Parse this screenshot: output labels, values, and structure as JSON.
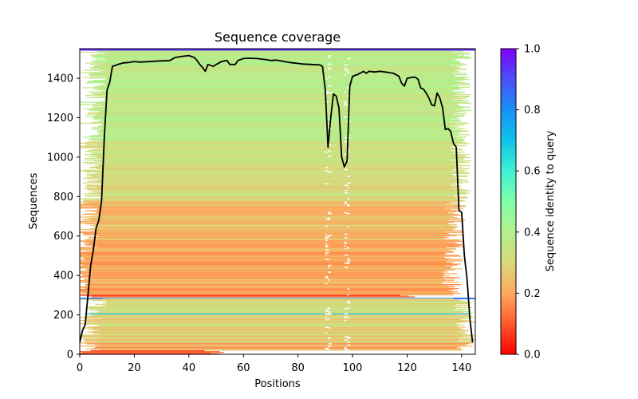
{
  "chart_data": {
    "type": "heatmap",
    "title": "Sequence coverage",
    "xlabel": "Positions",
    "ylabel": "Sequences",
    "xlim": [
      0,
      145
    ],
    "ylim": [
      0,
      1550
    ],
    "xticks": [
      0,
      20,
      40,
      60,
      80,
      100,
      120,
      140
    ],
    "yticks": [
      0,
      200,
      400,
      600,
      800,
      1000,
      1200,
      1400
    ],
    "grid": false,
    "colorbar": {
      "label": "Sequence identity to query",
      "range": [
        0,
        1
      ],
      "ticks": [
        "0.0",
        "0.2",
        "0.4",
        "0.6",
        "0.8",
        "1.0"
      ],
      "colormap": "rainbow_r",
      "stops": [
        {
          "v": 0.0,
          "color": "#ff0000"
        },
        {
          "v": 0.1,
          "color": "#ff5a2d"
        },
        {
          "v": 0.2,
          "color": "#ffa95e"
        },
        {
          "v": 0.3,
          "color": "#d8d87c"
        },
        {
          "v": 0.4,
          "color": "#b4f08c"
        },
        {
          "v": 0.5,
          "color": "#80ffa8"
        },
        {
          "v": 0.6,
          "color": "#3ef0d4"
        },
        {
          "v": 0.7,
          "color": "#0fc4ea"
        },
        {
          "v": 0.8,
          "color": "#1890f5"
        },
        {
          "v": 0.9,
          "color": "#4a50fa"
        },
        {
          "v": 1.0,
          "color": "#7f00ff"
        }
      ]
    },
    "coverage_line": {
      "name": "coverage",
      "color": "#000000",
      "x": [
        0,
        1,
        2,
        3,
        4,
        5,
        6,
        7,
        8,
        9,
        10,
        11,
        12,
        13,
        14,
        16,
        18,
        20,
        22,
        25,
        28,
        30,
        33,
        35,
        37,
        40,
        42,
        43,
        44,
        45,
        46,
        47,
        49,
        50,
        52,
        54,
        55,
        57,
        58,
        60,
        62,
        65,
        68,
        70,
        72,
        75,
        77,
        80,
        82,
        85,
        88,
        89,
        90,
        91,
        92,
        93,
        94,
        95,
        96,
        97,
        98,
        99,
        100,
        102,
        104,
        105,
        106,
        108,
        110,
        113,
        115,
        117,
        118,
        119,
        120,
        122,
        123,
        124,
        125,
        126,
        127,
        128,
        129,
        130,
        131,
        132,
        133,
        134,
        135,
        136,
        137,
        138,
        139,
        140,
        141,
        142,
        143,
        144
      ],
      "y": [
        60,
        120,
        150,
        300,
        450,
        530,
        640,
        680,
        780,
        1100,
        1340,
        1380,
        1460,
        1465,
        1470,
        1478,
        1480,
        1485,
        1482,
        1484,
        1487,
        1488,
        1490,
        1505,
        1510,
        1515,
        1505,
        1490,
        1470,
        1455,
        1435,
        1470,
        1460,
        1470,
        1485,
        1490,
        1470,
        1470,
        1490,
        1500,
        1502,
        1500,
        1495,
        1490,
        1492,
        1485,
        1480,
        1475,
        1472,
        1470,
        1468,
        1460,
        1340,
        1050,
        1200,
        1320,
        1310,
        1250,
        1000,
        950,
        980,
        1360,
        1410,
        1420,
        1435,
        1425,
        1435,
        1432,
        1435,
        1430,
        1425,
        1410,
        1375,
        1360,
        1400,
        1405,
        1405,
        1395,
        1350,
        1345,
        1325,
        1300,
        1265,
        1260,
        1325,
        1300,
        1250,
        1140,
        1145,
        1130,
        1070,
        1050,
        730,
        720,
        500,
        380,
        180,
        60
      ]
    },
    "bands": [
      {
        "y0": 1540,
        "y1": 1550,
        "x0": 0,
        "x1": 145,
        "identity": 0.95,
        "note": "query sequence"
      },
      {
        "y0": 1080,
        "y1": 1540,
        "x0": 10,
        "x1": 138,
        "identity": 0.37
      },
      {
        "y0": 780,
        "y1": 1080,
        "x0": 9,
        "x1": 138,
        "identity": 0.32
      },
      {
        "y0": 520,
        "y1": 780,
        "x0": 7,
        "x1": 136,
        "identity": 0.23
      },
      {
        "y0": 300,
        "y1": 520,
        "x0": 5,
        "x1": 135,
        "identity": 0.2
      },
      {
        "y0": 290,
        "y1": 300,
        "x0": 5,
        "x1": 118,
        "identity": 0.1
      },
      {
        "y0": 283,
        "y1": 287,
        "x0": 0,
        "x1": 145,
        "identity": 0.85,
        "note": "line"
      },
      {
        "y0": 200,
        "y1": 283,
        "x0": 10,
        "x1": 139,
        "identity": 0.33
      },
      {
        "y0": 60,
        "y1": 200,
        "x0": 8,
        "x1": 140,
        "identity": 0.28
      },
      {
        "y0": 20,
        "y1": 60,
        "x0": 8,
        "x1": 140,
        "identity": 0.2
      },
      {
        "y0": 0,
        "y1": 20,
        "x0": 4,
        "x1": 48,
        "identity": 0.08
      }
    ],
    "bands_thin": [
      {
        "y": 205,
        "x0": 2,
        "x1": 143,
        "identity": 0.7
      }
    ],
    "gaps_x": [
      90,
      91,
      97,
      98
    ]
  }
}
